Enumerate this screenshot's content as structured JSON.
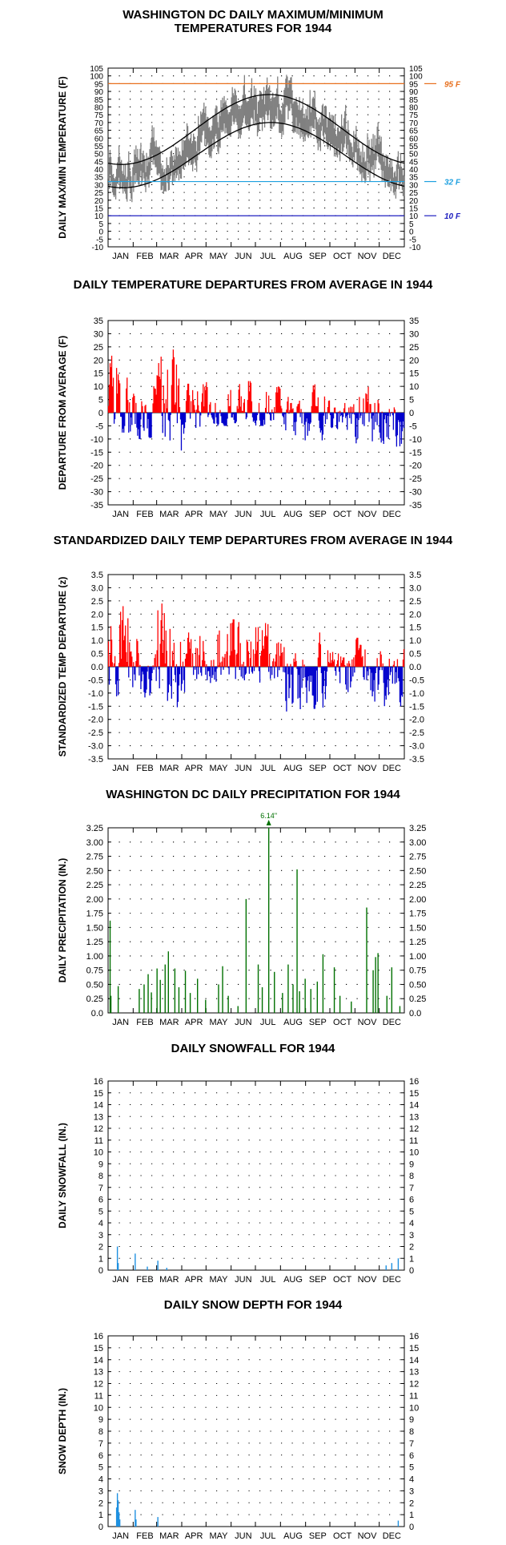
{
  "chart_data": [
    {
      "type": "line",
      "title_lines": [
        "WASHINGTON DC DAILY MAXIMUM/MINIMUM",
        "TEMPERATURES FOR 1944"
      ],
      "ylabel": "DAILY MAX/MIN TEMPERATURE (F)",
      "ylim": [
        -10,
        105
      ],
      "yticks": [
        -10,
        -5,
        0,
        5,
        10,
        15,
        20,
        25,
        30,
        35,
        40,
        45,
        50,
        55,
        60,
        65,
        70,
        75,
        80,
        85,
        90,
        95,
        100,
        105
      ],
      "categories": [
        "JAN",
        "FEB",
        "MAR",
        "APR",
        "MAY",
        "JUN",
        "JUL",
        "AUG",
        "SEP",
        "OCT",
        "NOV",
        "DEC"
      ],
      "reference_lines": [
        {
          "value": 95,
          "label": "95 F",
          "color": "#e8701e"
        },
        {
          "value": 32,
          "label": "32 F",
          "color": "#1ea0e0"
        },
        {
          "value": 10,
          "label": "10 F",
          "color": "#2020c0"
        }
      ],
      "series": [],
      "normal_high_range": [
        43,
        88
      ],
      "normal_low_range": [
        28,
        70
      ],
      "daily_range_color": "#808080"
    },
    {
      "type": "bar",
      "title_lines": [
        "DAILY TEMPERATURE DEPARTURES FROM AVERAGE IN 1944"
      ],
      "ylabel": "DEPARTURE FROM AVERAGE (F)",
      "ylim": [
        -35,
        35
      ],
      "yticks": [
        -35,
        -30,
        -25,
        -20,
        -15,
        -10,
        -5,
        0,
        5,
        10,
        15,
        20,
        25,
        30,
        35
      ],
      "categories": [
        "JAN",
        "FEB",
        "MAR",
        "APR",
        "MAY",
        "JUN",
        "JUL",
        "AUG",
        "SEP",
        "OCT",
        "NOV",
        "DEC"
      ],
      "positive_color": "#ff0000",
      "negative_color": "#0000cc",
      "monthly_profile": [
        {
          "month": "JAN",
          "max_pos": 24,
          "max_neg": -12
        },
        {
          "month": "FEB",
          "max_pos": 12,
          "max_neg": -10
        },
        {
          "month": "MAR",
          "max_pos": 24,
          "max_neg": -17
        },
        {
          "month": "APR",
          "max_pos": 11,
          "max_neg": -8
        },
        {
          "month": "MAY",
          "max_pos": 14,
          "max_neg": -5
        },
        {
          "month": "JUN",
          "max_pos": 12,
          "max_neg": -4
        },
        {
          "month": "JUL",
          "max_pos": 10,
          "max_neg": -5
        },
        {
          "month": "AUG",
          "max_pos": 6,
          "max_neg": -11
        },
        {
          "month": "SEP",
          "max_pos": 12,
          "max_neg": -12
        },
        {
          "month": "OCT",
          "max_pos": 7,
          "max_neg": -9
        },
        {
          "month": "NOV",
          "max_pos": 11,
          "max_neg": -13
        },
        {
          "month": "DEC",
          "max_pos": 9,
          "max_neg": -14
        }
      ]
    },
    {
      "type": "bar",
      "title_lines": [
        "STANDARDIZED DAILY TEMP DEPARTURES FROM AVERAGE IN 1944"
      ],
      "ylabel": "STANDARDIZED TEMP DEPARTURE (z)",
      "ylim": [
        -3.5,
        3.5
      ],
      "yticks": [
        -3.5,
        -3.0,
        -2.5,
        -2.0,
        -1.5,
        -1.0,
        -0.5,
        0.0,
        0.5,
        1.0,
        1.5,
        2.0,
        2.5,
        3.0,
        3.5
      ],
      "categories": [
        "JAN",
        "FEB",
        "MAR",
        "APR",
        "MAY",
        "JUN",
        "JUL",
        "AUG",
        "SEP",
        "OCT",
        "NOV",
        "DEC"
      ],
      "positive_color": "#ff0000",
      "negative_color": "#0000cc",
      "monthly_profile": [
        {
          "month": "JAN",
          "max_pos": 2.3,
          "max_neg": -1.3
        },
        {
          "month": "FEB",
          "max_pos": 1.2,
          "max_neg": -1.2
        },
        {
          "month": "MAR",
          "max_pos": 2.5,
          "max_neg": -2.0
        },
        {
          "month": "APR",
          "max_pos": 1.3,
          "max_neg": -1.0
        },
        {
          "month": "MAY",
          "max_pos": 1.9,
          "max_neg": -0.7
        },
        {
          "month": "JUN",
          "max_pos": 1.8,
          "max_neg": -0.8
        },
        {
          "month": "JUL",
          "max_pos": 1.8,
          "max_neg": -1.0
        },
        {
          "month": "AUG",
          "max_pos": 1.2,
          "max_neg": -1.7
        },
        {
          "month": "SEP",
          "max_pos": 1.3,
          "max_neg": -1.6
        },
        {
          "month": "OCT",
          "max_pos": 0.8,
          "max_neg": -1.4
        },
        {
          "month": "NOV",
          "max_pos": 1.1,
          "max_neg": -1.5
        },
        {
          "month": "DEC",
          "max_pos": 0.9,
          "max_neg": -1.5
        }
      ]
    },
    {
      "type": "bar",
      "title_lines": [
        "WASHINGTON DC DAILY PRECIPITATION FOR 1944"
      ],
      "ylabel": "DAILY PRECIPITATION (IN.)",
      "ylim": [
        0,
        3.25
      ],
      "yticks": [
        0.0,
        0.25,
        0.5,
        0.75,
        1.0,
        1.25,
        1.5,
        1.75,
        2.0,
        2.25,
        2.5,
        2.75,
        3.0,
        3.25
      ],
      "ytick_labels": [
        "0.0",
        "0.25",
        "0.50",
        "0.75",
        "1.00",
        "1.25",
        "1.50",
        "1.75",
        "2.00",
        "2.25",
        "2.50",
        "2.75",
        "3.00",
        "3.25"
      ],
      "categories": [
        "JAN",
        "FEB",
        "MAR",
        "APR",
        "MAY",
        "JUN",
        "JUL",
        "AUG",
        "SEP",
        "OCT",
        "NOV",
        "DEC"
      ],
      "bar_color": "#007000",
      "overflow_label": "6.14\"",
      "events": [
        {
          "day": 2,
          "value": 1.62
        },
        {
          "day": 3,
          "value": 0.3
        },
        {
          "day": 12,
          "value": 0.47
        },
        {
          "day": 38,
          "value": 0.42
        },
        {
          "day": 44,
          "value": 0.5
        },
        {
          "day": 49,
          "value": 0.68
        },
        {
          "day": 53,
          "value": 0.36
        },
        {
          "day": 60,
          "value": 0.78
        },
        {
          "day": 64,
          "value": 0.58
        },
        {
          "day": 70,
          "value": 0.85
        },
        {
          "day": 74,
          "value": 1.08
        },
        {
          "day": 82,
          "value": 0.78
        },
        {
          "day": 87,
          "value": 0.45
        },
        {
          "day": 95,
          "value": 0.74
        },
        {
          "day": 101,
          "value": 0.35
        },
        {
          "day": 110,
          "value": 0.6
        },
        {
          "day": 120,
          "value": 0.23
        },
        {
          "day": 136,
          "value": 0.5
        },
        {
          "day": 141,
          "value": 0.82
        },
        {
          "day": 148,
          "value": 0.3
        },
        {
          "day": 160,
          "value": 0.12
        },
        {
          "day": 170,
          "value": 2.0
        },
        {
          "day": 185,
          "value": 0.85
        },
        {
          "day": 190,
          "value": 0.45
        },
        {
          "day": 198,
          "value": 6.14
        },
        {
          "day": 205,
          "value": 0.72
        },
        {
          "day": 215,
          "value": 0.35
        },
        {
          "day": 222,
          "value": 0.85
        },
        {
          "day": 228,
          "value": 0.5
        },
        {
          "day": 233,
          "value": 2.52
        },
        {
          "day": 236,
          "value": 0.38
        },
        {
          "day": 243,
          "value": 0.6
        },
        {
          "day": 250,
          "value": 0.42
        },
        {
          "day": 258,
          "value": 0.55
        },
        {
          "day": 265,
          "value": 1.03
        },
        {
          "day": 279,
          "value": 0.8
        },
        {
          "day": 286,
          "value": 0.3
        },
        {
          "day": 300,
          "value": 0.2
        },
        {
          "day": 319,
          "value": 1.85
        },
        {
          "day": 327,
          "value": 0.75
        },
        {
          "day": 330,
          "value": 0.98
        },
        {
          "day": 333,
          "value": 1.05
        },
        {
          "day": 344,
          "value": 0.3
        },
        {
          "day": 350,
          "value": 0.8
        },
        {
          "day": 360,
          "value": 0.12
        }
      ]
    },
    {
      "type": "bar",
      "title_lines": [
        "DAILY SNOWFALL FOR 1944"
      ],
      "ylabel": "DAILY SNOWFALL (IN.)",
      "ylim": [
        0,
        16
      ],
      "yticks": [
        0,
        1,
        2,
        3,
        4,
        5,
        6,
        7,
        8,
        9,
        10,
        11,
        12,
        13,
        14,
        15,
        16
      ],
      "categories": [
        "JAN",
        "FEB",
        "MAR",
        "APR",
        "MAY",
        "JUN",
        "JUL",
        "AUG",
        "SEP",
        "OCT",
        "NOV",
        "DEC"
      ],
      "bar_color": "#1e90e0",
      "events": [
        {
          "day": 11,
          "value": 2.0
        },
        {
          "day": 12,
          "value": 0.6
        },
        {
          "day": 33,
          "value": 1.4
        },
        {
          "day": 48,
          "value": 0.3
        },
        {
          "day": 61,
          "value": 0.8
        },
        {
          "day": 72,
          "value": 0.2
        },
        {
          "day": 343,
          "value": 0.4
        },
        {
          "day": 350,
          "value": 0.6
        },
        {
          "day": 358,
          "value": 1.0
        }
      ]
    },
    {
      "type": "bar",
      "title_lines": [
        "DAILY SNOW DEPTH FOR 1944"
      ],
      "ylabel": "SNOW DEPTH (IN.)",
      "ylim": [
        0,
        16
      ],
      "yticks": [
        0,
        1,
        2,
        3,
        4,
        5,
        6,
        7,
        8,
        9,
        10,
        11,
        12,
        13,
        14,
        15,
        16
      ],
      "categories": [
        "JAN",
        "FEB",
        "MAR",
        "APR",
        "MAY",
        "JUN",
        "JUL",
        "AUG",
        "SEP",
        "OCT",
        "NOV",
        "DEC"
      ],
      "bar_color": "#1e90e0",
      "events": [
        {
          "day": 10,
          "value": 1.6
        },
        {
          "day": 11,
          "value": 2.8
        },
        {
          "day": 12,
          "value": 2.2
        },
        {
          "day": 13,
          "value": 1.2
        },
        {
          "day": 14,
          "value": 0.6
        },
        {
          "day": 33,
          "value": 1.4
        },
        {
          "day": 34,
          "value": 0.6
        },
        {
          "day": 61,
          "value": 0.8
        },
        {
          "day": 358,
          "value": 0.5
        }
      ]
    }
  ]
}
